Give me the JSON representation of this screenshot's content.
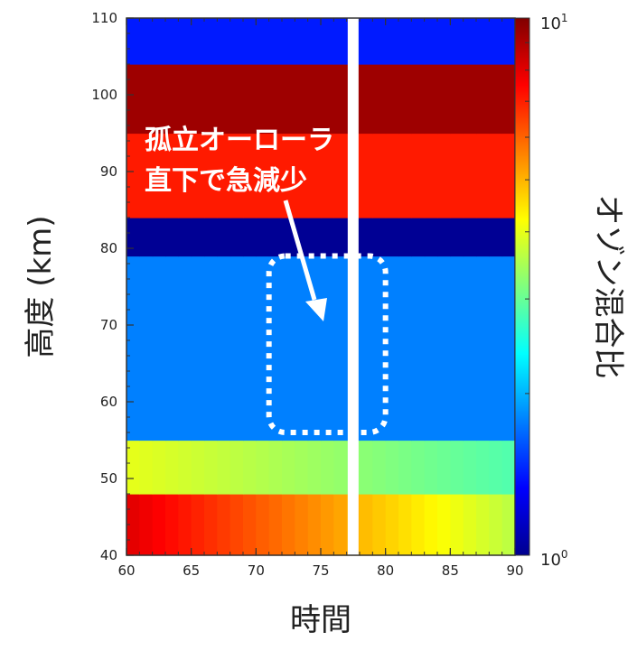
{
  "chart_data": {
    "type": "heatmap",
    "title": "",
    "xlabel": "時間",
    "ylabel": "高度 (km)",
    "xlim": [
      60,
      90
    ],
    "ylim": [
      40,
      110
    ],
    "x_ticks": [
      "60",
      "65",
      "70",
      "75",
      "80",
      "85",
      "90"
    ],
    "y_ticks": [
      "40",
      "50",
      "60",
      "70",
      "80",
      "90",
      "100",
      "110"
    ],
    "colorbar": {
      "label": "オゾン混合比",
      "scale": "log",
      "min_base": "10",
      "min_exp": "0",
      "max_base": "10",
      "max_exp": "1",
      "colormap": "jet"
    },
    "data_gap_time": 77.5,
    "bands_log10_mixing_ratio": [
      {
        "altitude_range_km": [
          40,
          48
        ],
        "value_west": 0.9,
        "value_east": 0.55
      },
      {
        "altitude_range_km": [
          48,
          55
        ],
        "value_west": 0.6,
        "value_east": 0.45
      },
      {
        "altitude_range_km": [
          55,
          79
        ],
        "value": 0.25
      },
      {
        "altitude_range_km": [
          79,
          84
        ],
        "value": 0.02
      },
      {
        "altitude_range_km": [
          84,
          95
        ],
        "value": 0.85
      },
      {
        "altitude_range_km": [
          95,
          104
        ],
        "value": 0.97
      },
      {
        "altitude_range_km": [
          104,
          110
        ],
        "value": 0.15
      }
    ],
    "annotation": {
      "line1": "孤立オーローラ",
      "line2": "直下で急減少",
      "box_time_range": [
        71,
        80
      ],
      "box_altitude_range_km": [
        56,
        79
      ]
    }
  }
}
